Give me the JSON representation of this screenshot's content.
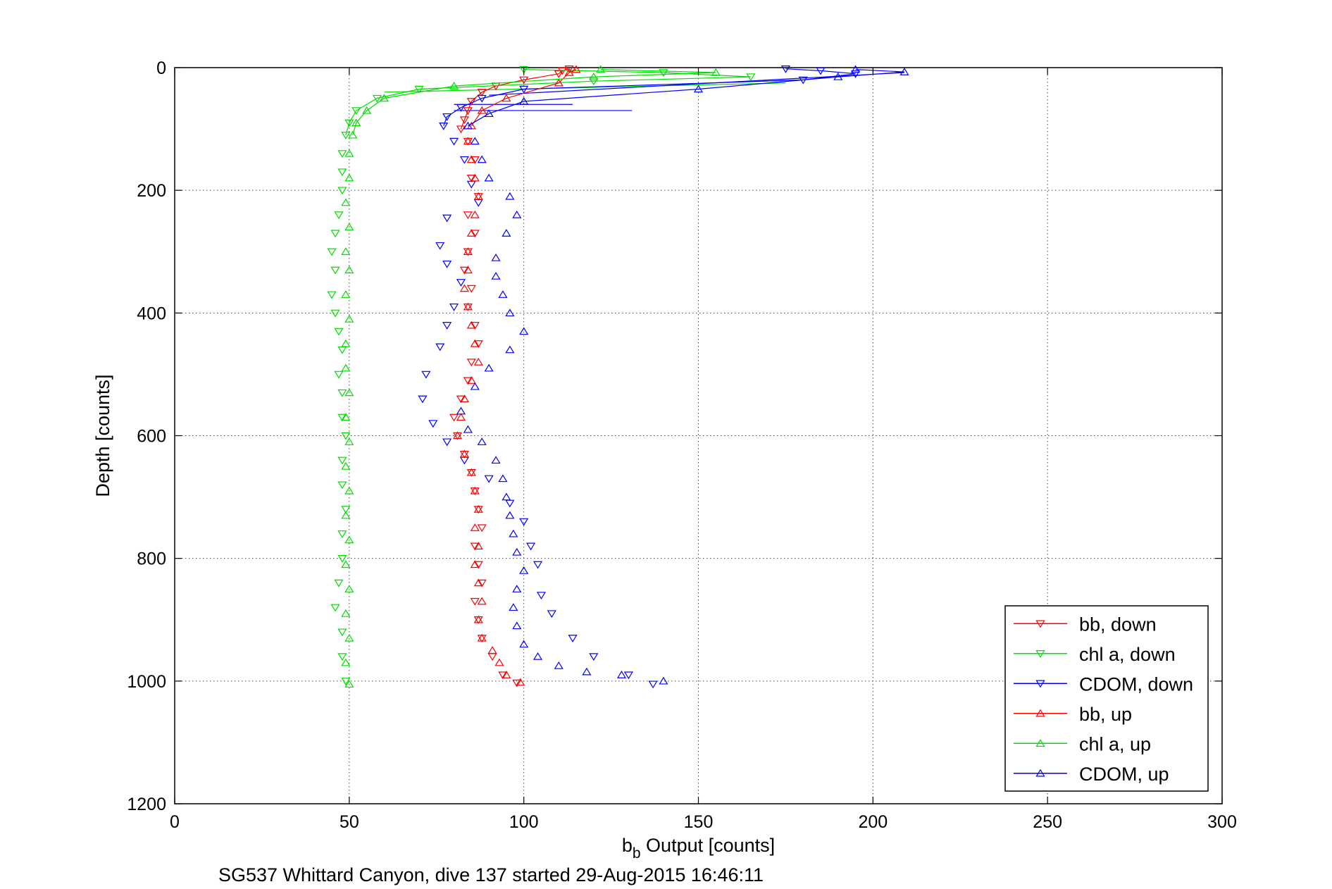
{
  "chart_data": {
    "type": "scatter",
    "xlabel": {
      "base": "b",
      "sub": "b",
      "rest": " Output [counts]"
    },
    "ylabel": "Depth [counts]",
    "caption": "SG537 Whittard Canyon, dive 137 started 29-Aug-2015 16:46:11",
    "xlim": [
      0,
      300
    ],
    "ylim": [
      0,
      1200
    ],
    "y_reversed": true,
    "grid": true,
    "legend_position": "bottom-right",
    "x_ticks": [
      "0",
      "50",
      "100",
      "150",
      "200",
      "250",
      "300"
    ],
    "y_ticks": [
      "0",
      "200",
      "400",
      "600",
      "800",
      "1000",
      "1200"
    ],
    "series": [
      {
        "name": "bb, down",
        "color": "#ff0000",
        "marker": "triangle-down",
        "points": [
          [
            113,
            2
          ],
          [
            111,
            5
          ],
          [
            110,
            10
          ],
          [
            100,
            20
          ],
          [
            92,
            30
          ],
          [
            88,
            40
          ],
          [
            85,
            55
          ],
          [
            84,
            70
          ],
          [
            83,
            85
          ],
          [
            82,
            100
          ],
          [
            84,
            120
          ],
          [
            86,
            150
          ],
          [
            85,
            180
          ],
          [
            87,
            210
          ],
          [
            84,
            240
          ],
          [
            86,
            270
          ],
          [
            84,
            300
          ],
          [
            83,
            330
          ],
          [
            85,
            360
          ],
          [
            84,
            390
          ],
          [
            86,
            420
          ],
          [
            87,
            450
          ],
          [
            85,
            480
          ],
          [
            84,
            510
          ],
          [
            82,
            540
          ],
          [
            80,
            570
          ],
          [
            81,
            600
          ],
          [
            83,
            630
          ],
          [
            85,
            660
          ],
          [
            86,
            690
          ],
          [
            87,
            720
          ],
          [
            88,
            750
          ],
          [
            86,
            780
          ],
          [
            87,
            810
          ],
          [
            88,
            840
          ],
          [
            86,
            870
          ],
          [
            87,
            900
          ],
          [
            88,
            930
          ],
          [
            91,
            960
          ],
          [
            94,
            990
          ],
          [
            98,
            1003
          ]
        ]
      },
      {
        "name": "chl a, down",
        "color": "#00dd00",
        "marker": "triangle-down",
        "points": [
          [
            100,
            3
          ],
          [
            140,
            8
          ],
          [
            165,
            15
          ],
          [
            120,
            22
          ],
          [
            70,
            35
          ],
          [
            58,
            50
          ],
          [
            52,
            70
          ],
          [
            50,
            90
          ],
          [
            49,
            110
          ],
          [
            48,
            140
          ],
          [
            48,
            170
          ],
          [
            48,
            200
          ],
          [
            47,
            240
          ],
          [
            46,
            270
          ],
          [
            45,
            300
          ],
          [
            46,
            330
          ],
          [
            45,
            370
          ],
          [
            46,
            400
          ],
          [
            47,
            430
          ],
          [
            48,
            460
          ],
          [
            47,
            500
          ],
          [
            48,
            530
          ],
          [
            48,
            570
          ],
          [
            49,
            600
          ],
          [
            48,
            640
          ],
          [
            48,
            680
          ],
          [
            49,
            720
          ],
          [
            48,
            760
          ],
          [
            48,
            800
          ],
          [
            47,
            840
          ],
          [
            46,
            880
          ],
          [
            48,
            920
          ],
          [
            48,
            960
          ],
          [
            49,
            1000
          ]
        ]
      },
      {
        "name": "CDOM, down",
        "color": "#0000ff",
        "marker": "triangle-down",
        "points": [
          [
            175,
            2
          ],
          [
            185,
            5
          ],
          [
            195,
            10
          ],
          [
            180,
            20
          ],
          [
            100,
            35
          ],
          [
            88,
            50
          ],
          [
            82,
            65
          ],
          [
            78,
            80
          ],
          [
            77,
            95
          ],
          [
            80,
            120
          ],
          [
            83,
            150
          ],
          [
            85,
            190
          ],
          [
            87,
            220
          ],
          [
            78,
            245
          ],
          [
            76,
            290
          ],
          [
            78,
            320
          ],
          [
            82,
            350
          ],
          [
            80,
            390
          ],
          [
            78,
            420
          ],
          [
            76,
            455
          ],
          [
            72,
            500
          ],
          [
            71,
            540
          ],
          [
            74,
            580
          ],
          [
            78,
            610
          ],
          [
            83,
            640
          ],
          [
            90,
            670
          ],
          [
            96,
            710
          ],
          [
            100,
            740
          ],
          [
            102,
            780
          ],
          [
            104,
            810
          ],
          [
            105,
            860
          ],
          [
            108,
            890
          ],
          [
            114,
            930
          ],
          [
            120,
            960
          ],
          [
            130,
            990
          ],
          [
            137,
            1005
          ]
        ]
      },
      {
        "name": "bb, up",
        "color": "#ff0000",
        "marker": "triangle-up",
        "points": [
          [
            99,
            1002
          ],
          [
            95,
            990
          ],
          [
            93,
            970
          ],
          [
            91,
            950
          ],
          [
            88,
            930
          ],
          [
            87,
            900
          ],
          [
            88,
            870
          ],
          [
            87,
            840
          ],
          [
            86,
            810
          ],
          [
            87,
            780
          ],
          [
            86,
            750
          ],
          [
            87,
            720
          ],
          [
            86,
            690
          ],
          [
            85,
            660
          ],
          [
            83,
            630
          ],
          [
            81,
            600
          ],
          [
            82,
            570
          ],
          [
            83,
            540
          ],
          [
            85,
            510
          ],
          [
            87,
            480
          ],
          [
            86,
            450
          ],
          [
            85,
            420
          ],
          [
            84,
            390
          ],
          [
            83,
            360
          ],
          [
            84,
            330
          ],
          [
            84,
            300
          ],
          [
            85,
            270
          ],
          [
            86,
            240
          ],
          [
            87,
            210
          ],
          [
            86,
            180
          ],
          [
            85,
            150
          ],
          [
            84,
            120
          ],
          [
            85,
            95
          ],
          [
            88,
            70
          ],
          [
            95,
            50
          ],
          [
            110,
            25
          ],
          [
            113,
            8
          ],
          [
            115,
            3
          ]
        ]
      },
      {
        "name": "chl a, up",
        "color": "#00dd00",
        "marker": "triangle-up",
        "points": [
          [
            50,
            1005
          ],
          [
            49,
            970
          ],
          [
            50,
            930
          ],
          [
            49,
            890
          ],
          [
            50,
            850
          ],
          [
            49,
            810
          ],
          [
            50,
            770
          ],
          [
            49,
            730
          ],
          [
            50,
            690
          ],
          [
            49,
            650
          ],
          [
            50,
            610
          ],
          [
            49,
            570
          ],
          [
            50,
            530
          ],
          [
            49,
            490
          ],
          [
            49,
            450
          ],
          [
            50,
            410
          ],
          [
            49,
            370
          ],
          [
            50,
            330
          ],
          [
            49,
            300
          ],
          [
            50,
            260
          ],
          [
            49,
            220
          ],
          [
            50,
            180
          ],
          [
            50,
            140
          ],
          [
            51,
            110
          ],
          [
            52,
            90
          ],
          [
            55,
            70
          ],
          [
            60,
            50
          ],
          [
            80,
            30
          ],
          [
            120,
            15
          ],
          [
            155,
            8
          ],
          [
            122,
            3
          ]
        ]
      },
      {
        "name": "CDOM, up",
        "color": "#0000ff",
        "marker": "triangle-up",
        "points": [
          [
            140,
            1000
          ],
          [
            128,
            990
          ],
          [
            118,
            985
          ],
          [
            110,
            975
          ],
          [
            104,
            960
          ],
          [
            100,
            940
          ],
          [
            98,
            910
          ],
          [
            97,
            880
          ],
          [
            98,
            850
          ],
          [
            100,
            820
          ],
          [
            98,
            790
          ],
          [
            97,
            760
          ],
          [
            96,
            730
          ],
          [
            95,
            700
          ],
          [
            94,
            670
          ],
          [
            92,
            640
          ],
          [
            88,
            610
          ],
          [
            84,
            590
          ],
          [
            82,
            560
          ],
          [
            86,
            520
          ],
          [
            90,
            490
          ],
          [
            96,
            460
          ],
          [
            100,
            430
          ],
          [
            96,
            400
          ],
          [
            94,
            370
          ],
          [
            92,
            340
          ],
          [
            92,
            310
          ],
          [
            95,
            270
          ],
          [
            98,
            240
          ],
          [
            96,
            210
          ],
          [
            90,
            180
          ],
          [
            88,
            150
          ],
          [
            86,
            120
          ],
          [
            84,
            95
          ],
          [
            90,
            75
          ],
          [
            100,
            55
          ],
          [
            150,
            35
          ],
          [
            190,
            15
          ],
          [
            209,
            7
          ],
          [
            195,
            3
          ]
        ]
      }
    ],
    "long_lines": [
      {
        "series": "CDOM, down",
        "from": [
          131,
          70
        ],
        "to": [
          80,
          70
        ]
      },
      {
        "series": "CDOM, down",
        "from": [
          114,
          60
        ],
        "to": [
          80,
          60
        ]
      },
      {
        "series": "chl a, down",
        "from": [
          175,
          25
        ],
        "to": [
          60,
          40
        ]
      },
      {
        "series": "CDOM, up",
        "from": [
          209,
          8
        ],
        "to": [
          90,
          45
        ]
      }
    ]
  }
}
